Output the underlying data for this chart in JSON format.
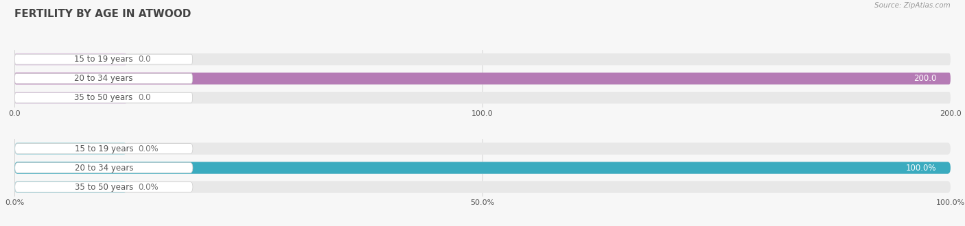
{
  "title": "FERTILITY BY AGE IN ATWOOD",
  "source": "Source: ZipAtlas.com",
  "top_chart": {
    "categories": [
      "15 to 19 years",
      "20 to 34 years",
      "35 to 50 years"
    ],
    "values": [
      0.0,
      200.0,
      0.0
    ],
    "bar_color_full": "#b57bb5",
    "bar_color_empty": "#dcc5e0",
    "xlim": [
      0,
      200.0
    ],
    "xticks": [
      0.0,
      100.0,
      200.0
    ],
    "xtick_labels": [
      "0.0",
      "100.0",
      "200.0"
    ],
    "value_labels": [
      "0.0",
      "200.0",
      "0.0"
    ]
  },
  "bottom_chart": {
    "categories": [
      "15 to 19 years",
      "20 to 34 years",
      "35 to 50 years"
    ],
    "values": [
      0.0,
      100.0,
      0.0
    ],
    "bar_color_full": "#3aabbf",
    "bar_color_empty": "#a8d8e0",
    "xlim": [
      0,
      100.0
    ],
    "xticks": [
      0.0,
      50.0,
      100.0
    ],
    "xtick_labels": [
      "0.0%",
      "50.0%",
      "100.0%"
    ],
    "value_labels": [
      "0.0%",
      "100.0%",
      "0.0%"
    ]
  },
  "bg_color": "#f7f7f7",
  "bar_bg_color": "#e8e8e8",
  "label_bg_color": "#ffffff",
  "label_color": "#555555",
  "title_color": "#444444",
  "source_color": "#999999",
  "value_label_color_inside": "#ffffff",
  "value_label_color_outside": "#777777",
  "bar_height": 0.62,
  "label_fontsize": 8.5,
  "title_fontsize": 11,
  "tick_fontsize": 8,
  "source_fontsize": 7.5
}
